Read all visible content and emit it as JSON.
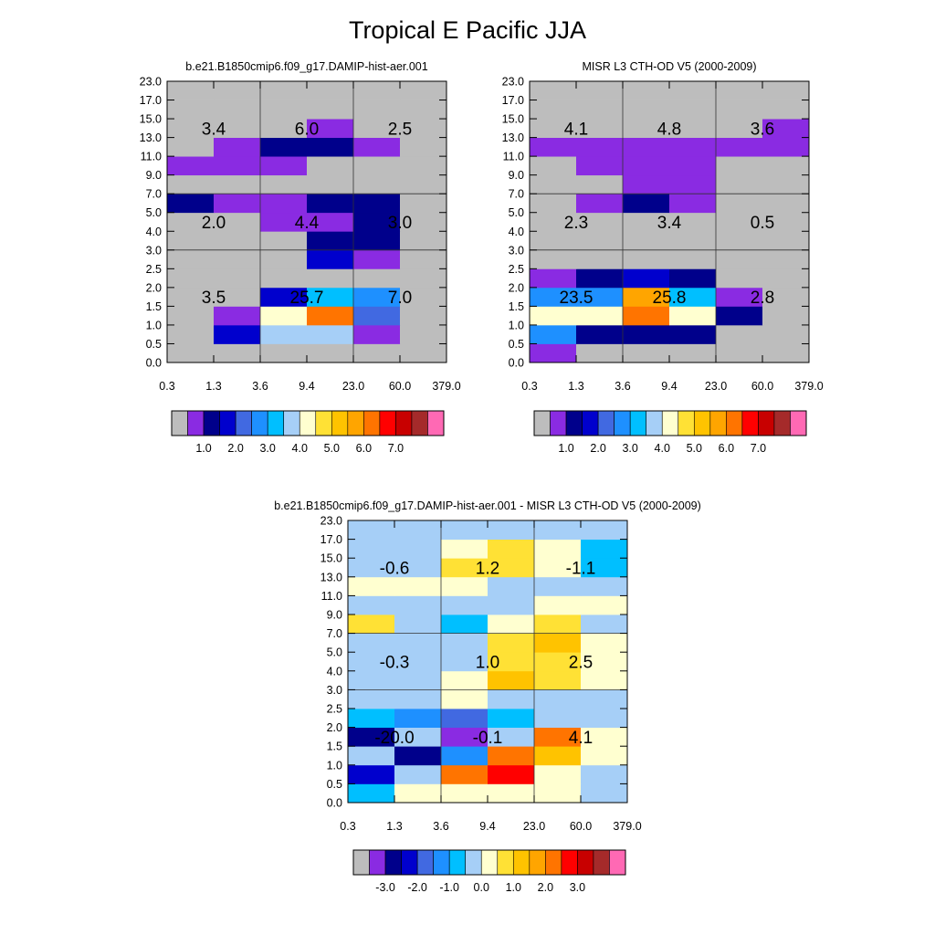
{
  "title": "Tropical E Pacific JJA",
  "colors": {
    "fill": [
      "#bdbdbd",
      "#8a2be2",
      "#00008b",
      "#0000cd",
      "#4169e1",
      "#1e90ff",
      "#00bfff",
      "#a6cff7",
      "#ffffd0",
      "#ffe135",
      "#ffc300",
      "#ffa500",
      "#ff7400",
      "#ff0000",
      "#c80000",
      "#a52a2a",
      "#ff69b4"
    ]
  },
  "chart_data": [
    {
      "type": "heatmap",
      "title": "b.e21.B1850cmip6.f09_g17.DAMIP-hist-aer.001",
      "x_ticks": [
        "0.3",
        "1.3",
        "3.6",
        "9.4",
        "23.0",
        "60.0",
        "379.0"
      ],
      "y_ticks": [
        "0.0",
        "0.5",
        "1.0",
        "1.5",
        "2.0",
        "2.5",
        "3.0",
        "4.0",
        "5.0",
        "7.0",
        "9.0",
        "11.0",
        "13.0",
        "15.0",
        "17.0",
        "23.0"
      ],
      "cells": [
        [
          0,
          0,
          0,
          0,
          0,
          0
        ],
        [
          0,
          3,
          7,
          7,
          1,
          0
        ],
        [
          0,
          1,
          8,
          12,
          4,
          0
        ],
        [
          0,
          0,
          3,
          6,
          5,
          0
        ],
        [
          0,
          0,
          0,
          0,
          0,
          0
        ],
        [
          0,
          0,
          0,
          3,
          1,
          0
        ],
        [
          0,
          0,
          0,
          2,
          2,
          0
        ],
        [
          0,
          0,
          1,
          1,
          2,
          0
        ],
        [
          2,
          1,
          1,
          2,
          2,
          0
        ],
        [
          0,
          0,
          0,
          0,
          0,
          0
        ],
        [
          1,
          1,
          1,
          0,
          0,
          0
        ],
        [
          0,
          1,
          2,
          2,
          1,
          0
        ],
        [
          0,
          0,
          0,
          1,
          0,
          0
        ],
        [
          0,
          0,
          0,
          0,
          0,
          0
        ],
        [
          0,
          0,
          0,
          0,
          0,
          0
        ]
      ],
      "annotations": [
        {
          "x_bin": 0,
          "y_bin": 12,
          "text": "3.4"
        },
        {
          "x_bin": 2,
          "y_bin": 12,
          "text": "6.0"
        },
        {
          "x_bin": 4,
          "y_bin": 12,
          "text": "2.5"
        },
        {
          "x_bin": 0,
          "y_bin": 7,
          "text": "2.0"
        },
        {
          "x_bin": 2,
          "y_bin": 7,
          "text": "4.4"
        },
        {
          "x_bin": 4,
          "y_bin": 7,
          "text": "3.0"
        },
        {
          "x_bin": 0,
          "y_bin": 3,
          "text": "3.5"
        },
        {
          "x_bin": 2,
          "y_bin": 3,
          "text": "25.7"
        },
        {
          "x_bin": 4,
          "y_bin": 3,
          "text": "7.0"
        }
      ],
      "colorbar_labels": [
        "1.0",
        "2.0",
        "3.0",
        "4.0",
        "5.0",
        "6.0",
        "7.0"
      ]
    },
    {
      "type": "heatmap",
      "title": "MISR L3 CTH-OD V5 (2000-2009)",
      "x_ticks": [
        "0.3",
        "1.3",
        "3.6",
        "9.4",
        "23.0",
        "60.0",
        "379.0"
      ],
      "y_ticks": [
        "0.0",
        "0.5",
        "1.0",
        "1.5",
        "2.0",
        "2.5",
        "3.0",
        "4.0",
        "5.0",
        "7.0",
        "9.0",
        "11.0",
        "13.0",
        "15.0",
        "17.0",
        "23.0"
      ],
      "cells": [
        [
          1,
          0,
          0,
          0,
          0,
          0
        ],
        [
          5,
          2,
          2,
          2,
          0,
          0
        ],
        [
          8,
          8,
          12,
          8,
          2,
          0
        ],
        [
          5,
          5,
          11,
          6,
          1,
          0
        ],
        [
          1,
          2,
          3,
          2,
          0,
          0
        ],
        [
          0,
          0,
          0,
          0,
          0,
          0
        ],
        [
          0,
          0,
          0,
          0,
          0,
          0
        ],
        [
          0,
          0,
          0,
          0,
          0,
          0
        ],
        [
          0,
          1,
          2,
          1,
          0,
          0
        ],
        [
          0,
          0,
          1,
          1,
          0,
          0
        ],
        [
          0,
          1,
          1,
          1,
          0,
          0
        ],
        [
          1,
          1,
          1,
          1,
          1,
          1
        ],
        [
          0,
          0,
          0,
          0,
          0,
          1
        ],
        [
          0,
          0,
          0,
          0,
          0,
          0
        ],
        [
          0,
          0,
          0,
          0,
          0,
          0
        ]
      ],
      "annotations": [
        {
          "x_bin": 0,
          "y_bin": 12,
          "text": "4.1"
        },
        {
          "x_bin": 2,
          "y_bin": 12,
          "text": "4.8"
        },
        {
          "x_bin": 4,
          "y_bin": 12,
          "text": "3.6"
        },
        {
          "x_bin": 0,
          "y_bin": 7,
          "text": "2.3"
        },
        {
          "x_bin": 2,
          "y_bin": 7,
          "text": "3.4"
        },
        {
          "x_bin": 4,
          "y_bin": 7,
          "text": "0.5"
        },
        {
          "x_bin": 0,
          "y_bin": 3,
          "text": "23.5"
        },
        {
          "x_bin": 2,
          "y_bin": 3,
          "text": "25.8"
        },
        {
          "x_bin": 4,
          "y_bin": 3,
          "text": "2.8"
        }
      ],
      "colorbar_labels": [
        "1.0",
        "2.0",
        "3.0",
        "4.0",
        "5.0",
        "6.0",
        "7.0"
      ]
    },
    {
      "type": "heatmap",
      "title": "b.e21.B1850cmip6.f09_g17.DAMIP-hist-aer.001 - MISR L3 CTH-OD V5 (2000-2009)",
      "x_ticks": [
        "0.3",
        "1.3",
        "3.6",
        "9.4",
        "23.0",
        "60.0",
        "379.0"
      ],
      "y_ticks": [
        "0.0",
        "0.5",
        "1.0",
        "1.5",
        "2.0",
        "2.5",
        "3.0",
        "4.0",
        "5.0",
        "7.0",
        "9.0",
        "11.0",
        "13.0",
        "15.0",
        "17.0",
        "23.0"
      ],
      "cells": [
        [
          6,
          8,
          8,
          8,
          8,
          7
        ],
        [
          3,
          7,
          12,
          13,
          8,
          7
        ],
        [
          7,
          2,
          5,
          12,
          10,
          8
        ],
        [
          2,
          7,
          1,
          7,
          12,
          8
        ],
        [
          6,
          5,
          4,
          6,
          7,
          7
        ],
        [
          7,
          7,
          8,
          7,
          7,
          7
        ],
        [
          7,
          7,
          8,
          10,
          9,
          8
        ],
        [
          7,
          7,
          7,
          9,
          9,
          8
        ],
        [
          7,
          7,
          7,
          9,
          10,
          8
        ],
        [
          9,
          7,
          6,
          8,
          9,
          7
        ],
        [
          7,
          7,
          7,
          7,
          8,
          8
        ],
        [
          8,
          8,
          8,
          7,
          7,
          7
        ],
        [
          7,
          7,
          9,
          9,
          8,
          6
        ],
        [
          7,
          7,
          8,
          9,
          8,
          6
        ],
        [
          7,
          7,
          7,
          7,
          7,
          7
        ]
      ],
      "annotations": [
        {
          "x_bin": 0,
          "y_bin": 12,
          "text": "-0.6"
        },
        {
          "x_bin": 2,
          "y_bin": 12,
          "text": "1.2"
        },
        {
          "x_bin": 4,
          "y_bin": 12,
          "text": "-1.1"
        },
        {
          "x_bin": 0,
          "y_bin": 7,
          "text": "-0.3"
        },
        {
          "x_bin": 2,
          "y_bin": 7,
          "text": "1.0"
        },
        {
          "x_bin": 4,
          "y_bin": 7,
          "text": "2.5"
        },
        {
          "x_bin": 0,
          "y_bin": 3,
          "text": "-20.0"
        },
        {
          "x_bin": 2,
          "y_bin": 3,
          "text": "-0.1"
        },
        {
          "x_bin": 4,
          "y_bin": 3,
          "text": "4.1"
        }
      ],
      "colorbar_labels": [
        "-3.0",
        "-2.0",
        "-1.0",
        "0.0",
        "1.0",
        "2.0",
        "3.0"
      ]
    }
  ]
}
